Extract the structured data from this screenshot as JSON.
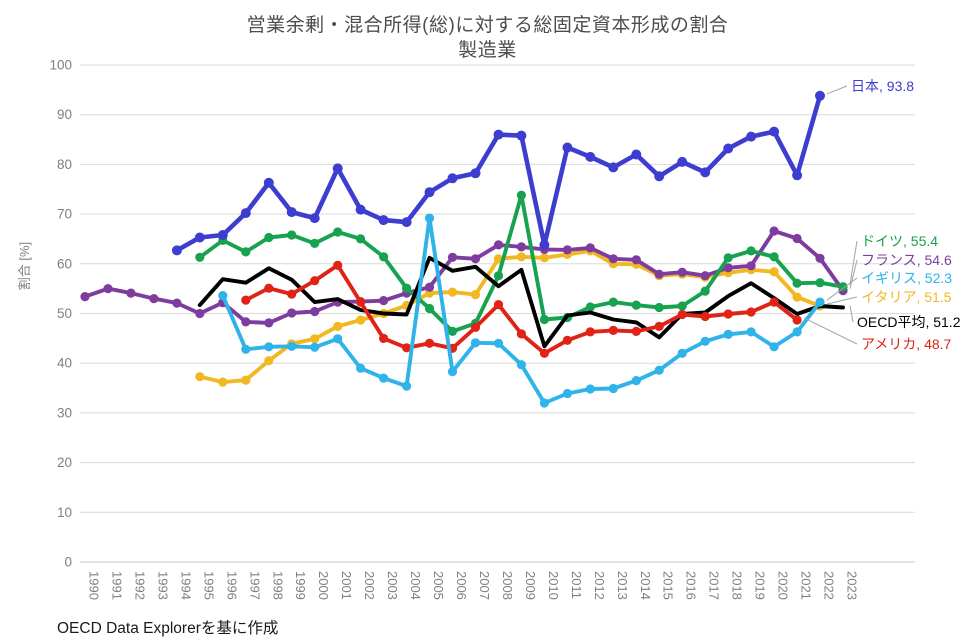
{
  "chart_data": {
    "type": "line",
    "title": "営業余剰・混合所得(総)に対する総固定資本形成の割合",
    "subtitle": "製造業",
    "ylabel": "割合 [%]",
    "ylim": [
      0,
      100
    ],
    "ytick_step": 10,
    "grid": "horizontal",
    "legend_position": "right-end-labels",
    "x": [
      1990,
      1991,
      1992,
      1993,
      1994,
      1995,
      1996,
      1997,
      1998,
      1999,
      2000,
      2001,
      2002,
      2003,
      2004,
      2005,
      2006,
      2007,
      2008,
      2009,
      2010,
      2011,
      2012,
      2013,
      2014,
      2015,
      2016,
      2017,
      2018,
      2019,
      2020,
      2021,
      2022,
      2023
    ],
    "series": [
      {
        "name": "日本",
        "end_label": "日本, 93.8",
        "color": "#3d3dcf",
        "markers": true,
        "start_year": 1994,
        "values": [
          62.7,
          65.3,
          65.8,
          70.2,
          76.3,
          70.4,
          69.2,
          79.2,
          70.9,
          68.8,
          68.4,
          74.4,
          77.2,
          78.2,
          86.0,
          85.8,
          63.8,
          83.4,
          81.5,
          79.4,
          82.0,
          77.6,
          80.5,
          78.4,
          83.2,
          85.6,
          86.6,
          77.8,
          93.8
        ]
      },
      {
        "name": "ドイツ",
        "end_label": "ドイツ, 55.4",
        "color": "#17a24f",
        "markers": true,
        "start_year": 1995,
        "values": [
          61.3,
          64.7,
          62.4,
          65.3,
          65.8,
          64.1,
          66.4,
          65.0,
          61.4,
          55.1,
          51.0,
          46.4,
          48.0,
          57.6,
          73.8,
          48.8,
          49.2,
          51.3,
          52.3,
          51.7,
          51.2,
          51.5,
          54.5,
          61.2,
          62.6,
          61.4,
          56.1,
          56.2,
          55.4
        ]
      },
      {
        "name": "フランス",
        "end_label": "フランス, 54.6",
        "color": "#7e3d9e",
        "markers": true,
        "start_year": 1990,
        "values": [
          53.4,
          55.0,
          54.1,
          53.0,
          52.1,
          50.0,
          52.2,
          48.3,
          48.1,
          50.1,
          50.4,
          52.3,
          52.4,
          52.6,
          54.1,
          55.3,
          61.3,
          61.0,
          63.8,
          63.4,
          62.9,
          62.8,
          63.2,
          61.0,
          60.8,
          57.9,
          58.3,
          57.6,
          59.2,
          59.6,
          66.6,
          65.1,
          61.1,
          54.6
        ]
      },
      {
        "name": "イギリス",
        "end_label": "イギリス, 52.3",
        "color": "#2fb3e8",
        "markers": true,
        "start_year": 1996,
        "values": [
          53.6,
          42.8,
          43.3,
          43.4,
          43.2,
          44.9,
          39.0,
          37.0,
          35.4,
          69.2,
          38.3,
          44.1,
          44.0,
          39.7,
          32.0,
          33.9,
          34.8,
          34.9,
          36.5,
          38.6,
          42.0,
          44.4,
          45.8,
          46.3,
          43.3,
          46.3,
          52.3
        ]
      },
      {
        "name": "イタリア",
        "end_label": "イタリア, 51.5",
        "color": "#f2b822",
        "markers": true,
        "start_year": 1995,
        "values": [
          37.3,
          36.2,
          36.6,
          40.5,
          43.9,
          44.9,
          47.4,
          48.7,
          50.0,
          51.6,
          54.1,
          54.3,
          53.8,
          61.0,
          61.4,
          61.2,
          61.9,
          62.6,
          60.0,
          59.9,
          57.6,
          57.9,
          57.3,
          58.2,
          58.8,
          58.4,
          53.3,
          51.5
        ]
      },
      {
        "name": "OECD平均",
        "end_label": "OECD平均, 51.2",
        "color": "#000000",
        "markers": false,
        "start_year": 1995,
        "values": [
          51.7,
          56.9,
          56.2,
          59.1,
          56.8,
          52.3,
          52.9,
          50.7,
          50.0,
          49.8,
          61.2,
          58.6,
          59.4,
          55.5,
          58.8,
          43.4,
          49.6,
          50.2,
          48.8,
          48.2,
          45.2,
          49.9,
          50.2,
          53.5,
          56.1,
          53.1,
          49.9,
          51.5,
          51.2
        ]
      },
      {
        "name": "アメリカ",
        "end_label": "アメリカ, 48.7",
        "color": "#e02317",
        "markers": true,
        "start_year": 1997,
        "values": [
          52.7,
          55.1,
          53.9,
          56.6,
          59.7,
          52.3,
          45.0,
          43.1,
          44.0,
          43.0,
          47.2,
          51.8,
          45.9,
          42.0,
          44.6,
          46.3,
          46.6,
          46.4,
          47.4,
          49.8,
          49.4,
          49.9,
          50.3,
          52.3,
          48.7
        ]
      }
    ],
    "source_note": "OECD Data Explorerを基に作成"
  }
}
